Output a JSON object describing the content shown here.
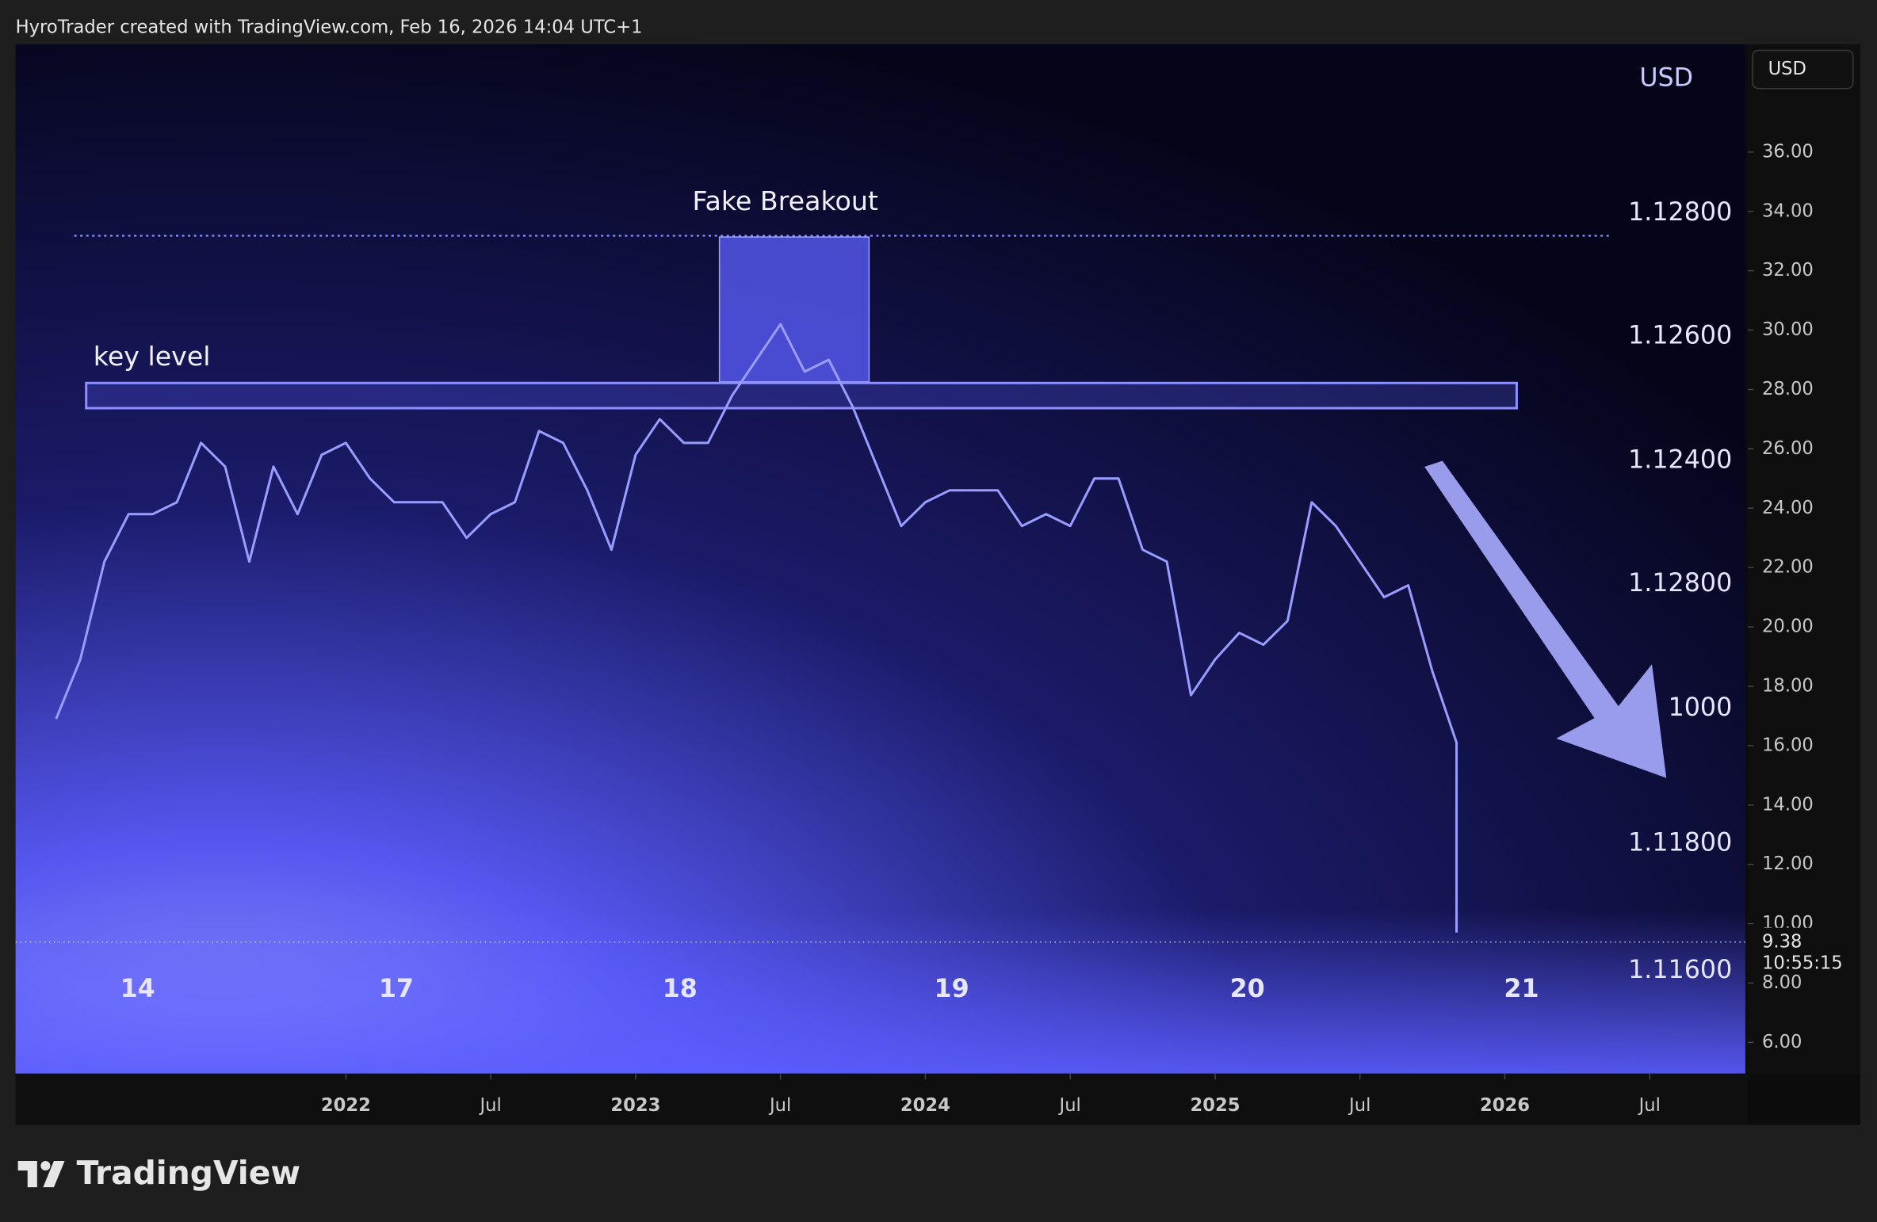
{
  "header": {
    "title": "HyroTrader created with TradingView.com, Feb 16, 2026 14:04 UTC+1"
  },
  "footer": {
    "brand": "TradingView"
  },
  "currency_button": "USD",
  "chart_data": {
    "type": "line",
    "color": "#9a9dff",
    "x": [
      "2021-01",
      "2021-02",
      "2021-03",
      "2021-04",
      "2021-05",
      "2021-06",
      "2021-07",
      "2021-08",
      "2021-09",
      "2021-10",
      "2021-11",
      "2021-12",
      "2022-01",
      "2022-02",
      "2022-03",
      "2022-04",
      "2022-05",
      "2022-06",
      "2022-07",
      "2022-08",
      "2022-09",
      "2022-10",
      "2022-11",
      "2022-12",
      "2023-01",
      "2023-02",
      "2023-03",
      "2023-04",
      "2023-05",
      "2023-06",
      "2023-07",
      "2023-08",
      "2023-09",
      "2023-10",
      "2023-11",
      "2023-12",
      "2024-01",
      "2024-02",
      "2024-03",
      "2024-04",
      "2024-05",
      "2024-06",
      "2024-07",
      "2024-08",
      "2024-09",
      "2024-10",
      "2024-11",
      "2024-12",
      "2025-01",
      "2025-02",
      "2025-03",
      "2025-04",
      "2025-05",
      "2025-06",
      "2025-07",
      "2025-08",
      "2025-09",
      "2025-10",
      "2025-11",
      "2025-11"
    ],
    "values": [
      16.9,
      18.9,
      22.2,
      23.8,
      23.8,
      24.2,
      26.2,
      25.4,
      22.2,
      25.4,
      23.8,
      25.8,
      26.2,
      25.0,
      24.2,
      24.2,
      24.2,
      23.0,
      23.8,
      24.2,
      26.6,
      26.2,
      24.6,
      22.6,
      25.8,
      27.0,
      26.2,
      26.2,
      27.8,
      29.0,
      30.2,
      28.6,
      29.0,
      27.4,
      25.4,
      23.4,
      24.2,
      24.6,
      24.6,
      24.6,
      23.4,
      23.8,
      23.4,
      25.0,
      25.0,
      22.6,
      22.2,
      17.7,
      18.9,
      19.8,
      19.4,
      20.2,
      24.2,
      23.4,
      22.2,
      21.0,
      21.4,
      18.5,
      16.1,
      9.7
    ],
    "xlim": [
      2020.86,
      2026.83
    ],
    "ylim": [
      4.95,
      39.63
    ],
    "xticks": [
      {
        "value": 2022,
        "label": "2022"
      },
      {
        "value": 2022.5,
        "label": "Jul"
      },
      {
        "value": 2023,
        "label": "2023"
      },
      {
        "value": 2023.5,
        "label": "Jul"
      },
      {
        "value": 2024,
        "label": "2024"
      },
      {
        "value": 2024.5,
        "label": "Jul"
      },
      {
        "value": 2025,
        "label": "2025"
      },
      {
        "value": 2025.5,
        "label": "Jul"
      },
      {
        "value": 2026,
        "label": "2026"
      },
      {
        "value": 2026.5,
        "label": "Jul"
      }
    ],
    "yticks": [
      {
        "value": 36,
        "label": "36.00"
      },
      {
        "value": 34,
        "label": "34.00"
      },
      {
        "value": 32,
        "label": "32.00"
      },
      {
        "value": 30,
        "label": "30.00"
      },
      {
        "value": 28,
        "label": "28.00"
      },
      {
        "value": 26,
        "label": "26.00"
      },
      {
        "value": 24,
        "label": "24.00"
      },
      {
        "value": 22,
        "label": "22.00"
      },
      {
        "value": 20,
        "label": "20.00"
      },
      {
        "value": 18,
        "label": "18.00"
      },
      {
        "value": 16,
        "label": "16.00"
      },
      {
        "value": 14,
        "label": "14.00"
      },
      {
        "value": 12,
        "label": "12.00"
      },
      {
        "value": 10,
        "label": "10.00"
      },
      {
        "value": 8,
        "label": "8.00"
      },
      {
        "value": 6,
        "label": "6.00"
      }
    ],
    "last_price": 9.38,
    "countdown": "10:55:15",
    "annotations": [
      "key level",
      "Fake Breakout"
    ],
    "overlay_unit": "USD",
    "overlay_x_labels": [
      "14",
      "17",
      "18",
      "19",
      "20",
      "21"
    ],
    "overlay_y_labels": [
      "1.12800",
      "1.12600",
      "1.12400",
      "1.12800",
      "1000",
      "1.11800",
      "1.11600"
    ]
  }
}
